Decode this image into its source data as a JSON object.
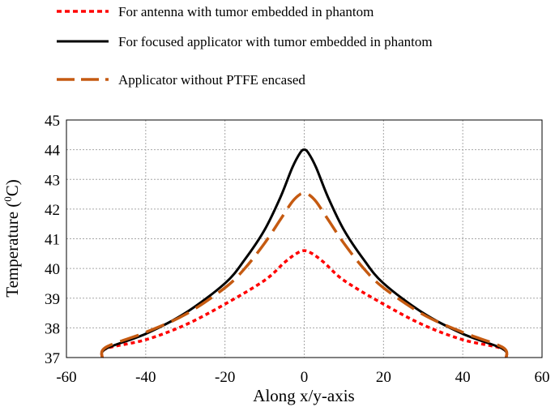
{
  "chart_data": {
    "type": "line",
    "title": "",
    "xlabel": "Along x/y-axis",
    "ylabel_main": "Temperature (",
    "ylabel_sup": "0",
    "ylabel_end": "C)",
    "xlim": [
      -60,
      60
    ],
    "ylim": [
      37,
      45
    ],
    "xticks": [
      -60,
      -40,
      -20,
      0,
      20,
      40,
      60
    ],
    "yticks": [
      37,
      38,
      39,
      40,
      41,
      42,
      43,
      44,
      45
    ],
    "grid": true,
    "legend_position": "top-left",
    "series": [
      {
        "name": "For antenna with tumor embedded in phantom",
        "color": "#ff0000",
        "style": "dotted",
        "x": [
          -51,
          -50,
          -40,
          -30,
          -20,
          -10,
          -5,
          -2,
          0,
          2,
          5,
          10,
          20,
          30,
          40,
          50,
          51
        ],
        "y": [
          37.0,
          37.3,
          37.6,
          38.1,
          38.8,
          39.6,
          40.2,
          40.5,
          40.6,
          40.5,
          40.2,
          39.6,
          38.8,
          38.1,
          37.6,
          37.3,
          37.0
        ]
      },
      {
        "name": "For focused applicator with tumor embedded in phantom",
        "color": "#000000",
        "style": "solid",
        "x": [
          -51,
          -50,
          -40,
          -30,
          -20,
          -15,
          -10,
          -6,
          -3,
          -1,
          0,
          1,
          3,
          6,
          10,
          15,
          20,
          30,
          40,
          50,
          51
        ],
        "y": [
          37.0,
          37.3,
          37.8,
          38.5,
          39.5,
          40.3,
          41.3,
          42.4,
          43.4,
          43.9,
          44.0,
          43.9,
          43.4,
          42.4,
          41.3,
          40.3,
          39.5,
          38.5,
          37.8,
          37.3,
          37.0
        ]
      },
      {
        "name": "Applicator without PTFE encased",
        "color": "#c55a11",
        "style": "dashed",
        "x": [
          -51,
          -50,
          -40,
          -30,
          -20,
          -15,
          -10,
          -6,
          -3,
          -1,
          0,
          1,
          3,
          6,
          10,
          15,
          20,
          30,
          40,
          50,
          51
        ],
        "y": [
          37.0,
          37.35,
          37.85,
          38.45,
          39.35,
          40.0,
          40.85,
          41.65,
          42.25,
          42.5,
          42.5,
          42.5,
          42.25,
          41.65,
          40.85,
          40.0,
          39.35,
          38.45,
          37.85,
          37.35,
          37.0
        ]
      }
    ]
  }
}
